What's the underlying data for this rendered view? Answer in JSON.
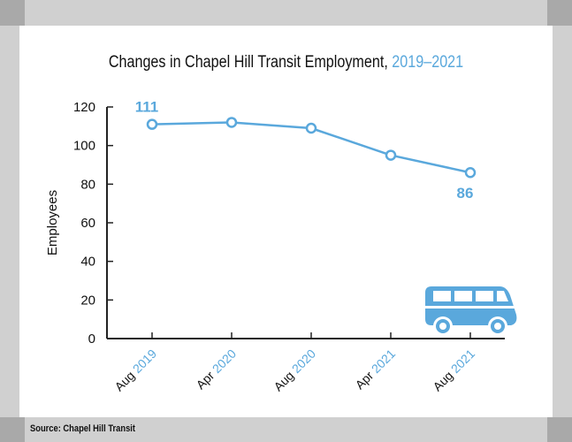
{
  "title": {
    "main": "Changes in Chapel Hill Transit Employment, ",
    "accent": "2019–2021"
  },
  "source": "Source: Chapel Hill Transit",
  "colors": {
    "accent": "#5aa8dc",
    "band": "#d0d0d0",
    "corner": "#a9a9a9"
  },
  "icon": "bus-icon",
  "chart_data": {
    "type": "line",
    "title": "Changes in Chapel Hill Transit Employment, 2019–2021",
    "ylabel": "Employees",
    "xlabel": "",
    "categories": [
      {
        "month": "Aug",
        "year": "2019"
      },
      {
        "month": "Apr",
        "year": "2020"
      },
      {
        "month": "Aug",
        "year": "2020"
      },
      {
        "month": "Apr",
        "year": "2021"
      },
      {
        "month": "Aug",
        "year": "2021"
      }
    ],
    "values": [
      111,
      112,
      109,
      95,
      86
    ],
    "data_labels": [
      {
        "index": 0,
        "text": "111"
      },
      {
        "index": 4,
        "text": "86"
      }
    ],
    "ylim": [
      0,
      120
    ],
    "yticks": [
      0,
      20,
      40,
      60,
      80,
      100,
      120
    ],
    "grid": false
  }
}
